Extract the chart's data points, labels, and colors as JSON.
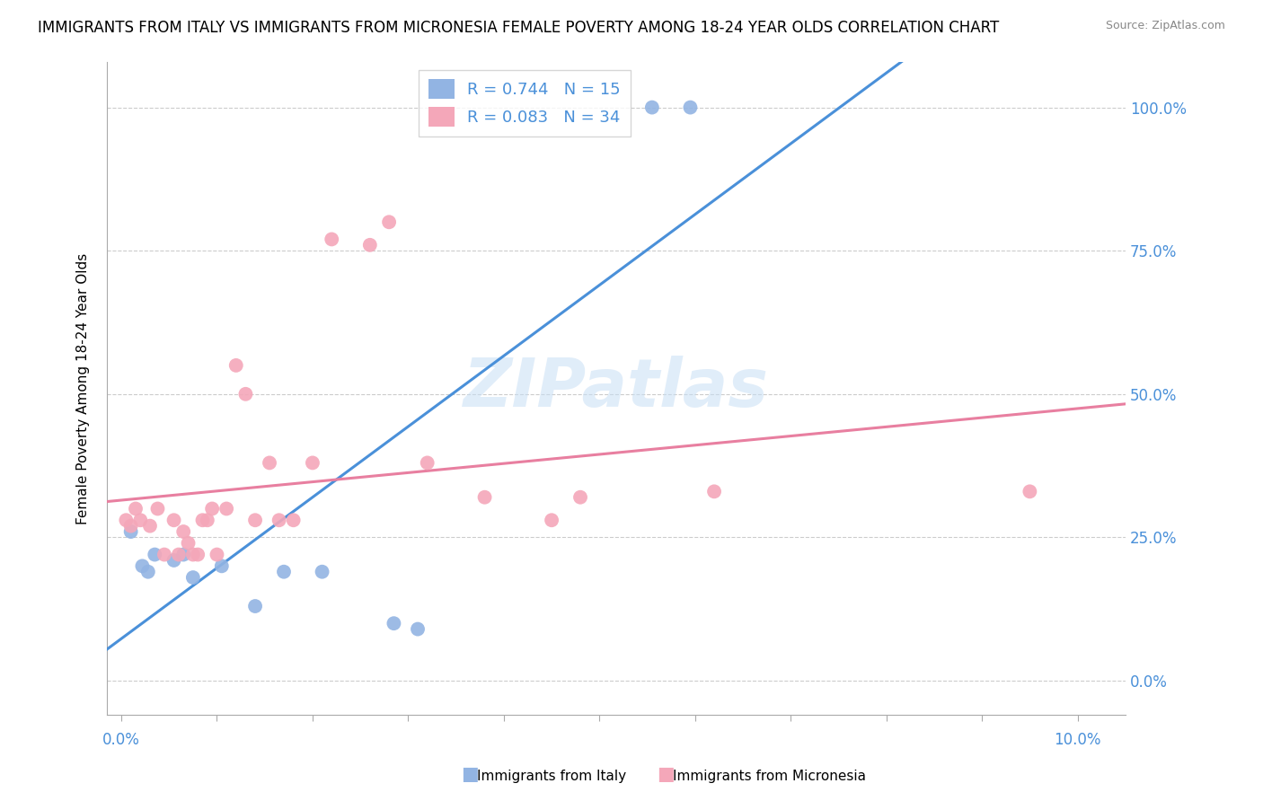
{
  "title": "IMMIGRANTS FROM ITALY VS IMMIGRANTS FROM MICRONESIA FEMALE POVERTY AMONG 18-24 YEAR OLDS CORRELATION CHART",
  "source": "Source: ZipAtlas.com",
  "ylabel": "Female Poverty Among 18-24 Year Olds",
  "watermark": "ZIPatlas",
  "legend_italy_R": "R = 0.744",
  "legend_italy_N": "N = 15",
  "legend_micronesia_R": "R = 0.083",
  "legend_micronesia_N": "N = 34",
  "color_italy": "#92b4e3",
  "color_micronesia": "#f4a7b9",
  "color_italy_line": "#4a90d9",
  "color_micronesia_line": "#e87fa0",
  "italy_x": [
    0.1,
    0.22,
    0.28,
    0.35,
    0.55,
    0.65,
    0.75,
    1.05,
    1.4,
    1.7,
    2.1,
    2.85,
    3.1,
    5.55,
    5.95
  ],
  "italy_y": [
    26,
    20,
    19,
    22,
    21,
    22,
    18,
    20,
    13,
    19,
    19,
    10,
    9,
    100,
    100
  ],
  "micronesia_x": [
    0.05,
    0.1,
    0.15,
    0.2,
    0.3,
    0.38,
    0.45,
    0.55,
    0.6,
    0.65,
    0.7,
    0.75,
    0.8,
    0.85,
    0.9,
    0.95,
    1.0,
    1.1,
    1.2,
    1.3,
    1.4,
    1.55,
    1.65,
    1.8,
    2.0,
    2.2,
    2.6,
    2.8,
    3.2,
    3.8,
    4.5,
    4.8,
    6.2,
    9.5
  ],
  "micronesia_y": [
    28,
    27,
    30,
    28,
    27,
    30,
    22,
    28,
    22,
    26,
    24,
    22,
    22,
    28,
    28,
    30,
    22,
    30,
    55,
    50,
    28,
    38,
    28,
    28,
    38,
    77,
    76,
    80,
    38,
    32,
    28,
    32,
    33,
    33
  ],
  "xlim_min": -0.15,
  "xlim_max": 10.5,
  "ylim_min": -6,
  "ylim_max": 108
}
